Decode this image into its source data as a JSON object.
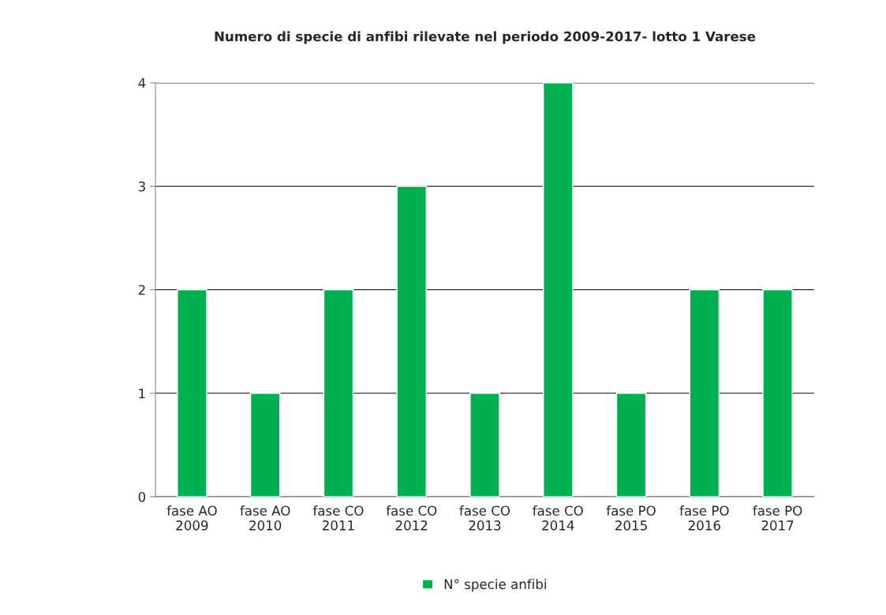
{
  "chart_data": {
    "type": "bar",
    "title": "Numero di specie di anfibi rilevate nel periodo 2009-2017- lotto 1 Varese",
    "categories": [
      "fase AO\n2009",
      "fase AO\n2010",
      "fase CO\n2011",
      "fase CO\n2012",
      "fase CO\n2013",
      "fase CO\n2014",
      "fase PO\n2015",
      "fase PO\n2016",
      "fase PO\n2017"
    ],
    "series": [
      {
        "name": "N° specie anfibi",
        "color": "#00b050",
        "values": [
          2,
          1,
          2,
          3,
          1,
          4,
          1,
          2,
          2
        ]
      }
    ],
    "ylim": [
      0,
      4
    ],
    "yticks": [
      0,
      1,
      2,
      3,
      4
    ],
    "grid": "y",
    "legend": "bottom"
  }
}
